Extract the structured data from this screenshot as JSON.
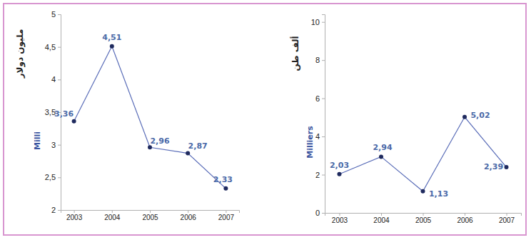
{
  "chart_data": [
    {
      "type": "line",
      "ylabel": "مليون دولار",
      "ylabel_fr": "Milli",
      "categories": [
        "2003",
        "2004",
        "2005",
        "2006",
        "2007"
      ],
      "values": [
        3.36,
        4.51,
        2.96,
        2.87,
        2.33
      ],
      "value_labels": [
        "3,36",
        "4,51",
        "2,96",
        "2,87",
        "2,33"
      ],
      "color": "#5a6db8",
      "marker": "circle",
      "data_labels": true,
      "ylim": [
        2,
        5
      ],
      "yticks": [
        2,
        {
          "value": 2.5,
          "label": "2,5"
        },
        3,
        {
          "value": 3.5,
          "label": "3,5"
        },
        4,
        {
          "value": 4.5,
          "label": "4,5"
        },
        5
      ]
    },
    {
      "type": "line",
      "ylabel": "ألف طن",
      "ylabel_fr": "Milliers",
      "categories": [
        "2003",
        "2004",
        "2005",
        "2006",
        "2007"
      ],
      "values": [
        2.03,
        2.94,
        1.13,
        5.02,
        2.39
      ],
      "value_labels": [
        "2,03",
        "2,94",
        "1,13",
        "5,02",
        "2,39"
      ],
      "color": "#5a6db8",
      "marker": "circle",
      "data_labels": true,
      "ylim": [
        0,
        10.4
      ],
      "yticks": [
        0,
        2,
        4,
        6,
        8,
        10
      ]
    }
  ]
}
